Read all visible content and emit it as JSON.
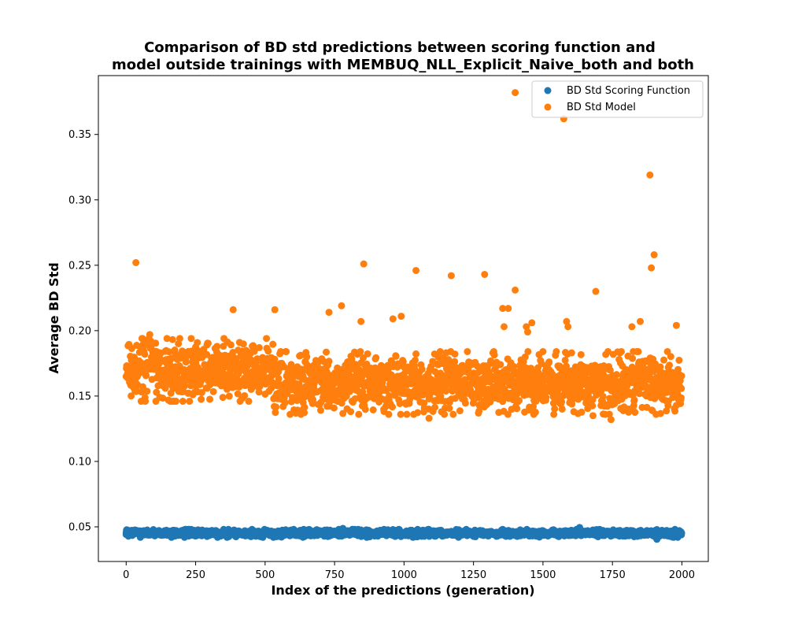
{
  "chart_data": {
    "type": "scatter",
    "title_lines": [
      "Comparison of BD std predictions between scoring function and",
      "model outside trainings with MEMBUQ_NLL_Explicit_Naive_both and both"
    ],
    "xlabel": "Index of the predictions (generation)",
    "ylabel": "Average BD Std",
    "xlim": [
      -100,
      2095
    ],
    "ylim": [
      0.0235,
      0.395
    ],
    "xticks": [
      0,
      250,
      500,
      750,
      1000,
      1250,
      1500,
      1750,
      2000
    ],
    "xtick_labels": [
      "0",
      "250",
      "500",
      "750",
      "1000",
      "1250",
      "1500",
      "1750",
      "2000"
    ],
    "yticks": [
      0.05,
      0.1,
      0.15,
      0.2,
      0.25,
      0.3,
      0.35
    ],
    "ytick_labels": [
      "0.05",
      "0.10",
      "0.15",
      "0.20",
      "0.25",
      "0.30",
      "0.35"
    ],
    "grid": false,
    "legend_position": "upper right",
    "series": [
      {
        "name": "BD Std Scoring Function",
        "color": "#1f77b4",
        "n_points": 2000,
        "x_range": [
          0,
          1999
        ],
        "y_typical_range": [
          0.042,
          0.048
        ],
        "points": [
          [
            0,
            0.0455
          ],
          [
            1910,
            0.0405
          ],
          [
            1632,
            0.0495
          ],
          [
            780,
            0.0488
          ]
        ]
      },
      {
        "name": "BD Std Model",
        "color": "#ff7f0e",
        "n_points": 2000,
        "x_range": [
          0,
          1999
        ],
        "band_first_half": [
          0.15,
          0.19
        ],
        "band_second_half": [
          0.14,
          0.18
        ],
        "points": [
          [
            1400,
            0.382
          ],
          [
            1575,
            0.362
          ],
          [
            1885,
            0.319
          ],
          [
            1900,
            0.258
          ],
          [
            35,
            0.252
          ],
          [
            855,
            0.251
          ],
          [
            1890,
            0.248
          ],
          [
            1043,
            0.246
          ],
          [
            1170,
            0.242
          ],
          [
            1290,
            0.243
          ],
          [
            1400,
            0.231
          ],
          [
            1690,
            0.23
          ],
          [
            385,
            0.216
          ],
          [
            535,
            0.216
          ],
          [
            775,
            0.219
          ],
          [
            1355,
            0.217
          ],
          [
            1375,
            0.217
          ],
          [
            990,
            0.211
          ],
          [
            730,
            0.214
          ],
          [
            960,
            0.209
          ],
          [
            845,
            0.207
          ],
          [
            1585,
            0.207
          ],
          [
            1850,
            0.207
          ],
          [
            1460,
            0.206
          ],
          [
            1980,
            0.204
          ],
          [
            1590,
            0.203
          ],
          [
            1820,
            0.203
          ],
          [
            1360,
            0.203
          ],
          [
            1440,
            0.203
          ],
          [
            1445,
            0.199
          ],
          [
            85,
            0.197
          ],
          [
            1090,
            0.133
          ],
          [
            1745,
            0.132
          ],
          [
            1680,
            0.135
          ]
        ]
      }
    ]
  }
}
